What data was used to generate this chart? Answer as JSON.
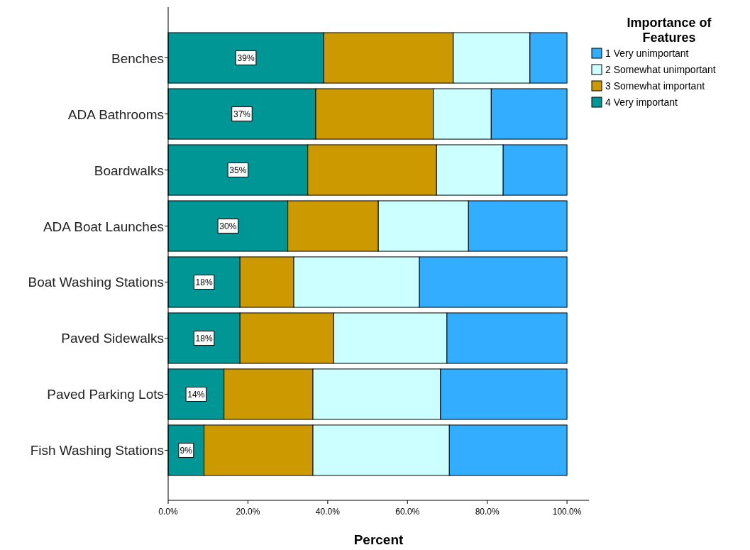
{
  "chart_data": {
    "type": "bar",
    "orientation": "horizontal",
    "stacked": true,
    "xlabel": "Percent",
    "legend_title": "Importance of Features",
    "legend": "right",
    "categories": [
      "Benches",
      "ADA Bathrooms",
      "Boardwalks",
      "ADA Boat Launches",
      "Boat Washing Stations",
      "Paved Sidewalks",
      "Paved Parking Lots",
      "Fish Washing Stations"
    ],
    "series": [
      {
        "name": "4 Very important",
        "color": "#009696",
        "values": [
          39,
          37,
          35,
          30,
          18,
          18,
          14,
          9
        ],
        "value_labels": [
          "39%",
          "37%",
          "35%",
          "30%",
          "18%",
          "18%",
          "14%",
          "9%"
        ]
      },
      {
        "name": "3 Somewhat important",
        "color": "#cc9900",
        "values": [
          32.5,
          29.5,
          32.3,
          22.7,
          13.5,
          23.5,
          22.3,
          27.3
        ]
      },
      {
        "name": "2 Somewhat unimportant",
        "color": "#ccffff",
        "values": [
          19.2,
          14.5,
          16.7,
          22.6,
          31.5,
          28.4,
          32.0,
          34.2
        ]
      },
      {
        "name": "1 Very unimportant",
        "color": "#33adff",
        "values": [
          9.3,
          19.0,
          16.0,
          24.7,
          37.0,
          30.1,
          31.7,
          29.5
        ]
      }
    ],
    "xlim": [
      0,
      105.5
    ],
    "xticks": [
      {
        "value": 0,
        "label": "0.0%"
      },
      {
        "value": 20,
        "label": "20.0%"
      },
      {
        "value": 40,
        "label": "40.0%"
      },
      {
        "value": 60,
        "label": "60.0%"
      },
      {
        "value": 80,
        "label": "80.0%"
      },
      {
        "value": 100,
        "label": "100.0%"
      }
    ],
    "grid": false
  }
}
